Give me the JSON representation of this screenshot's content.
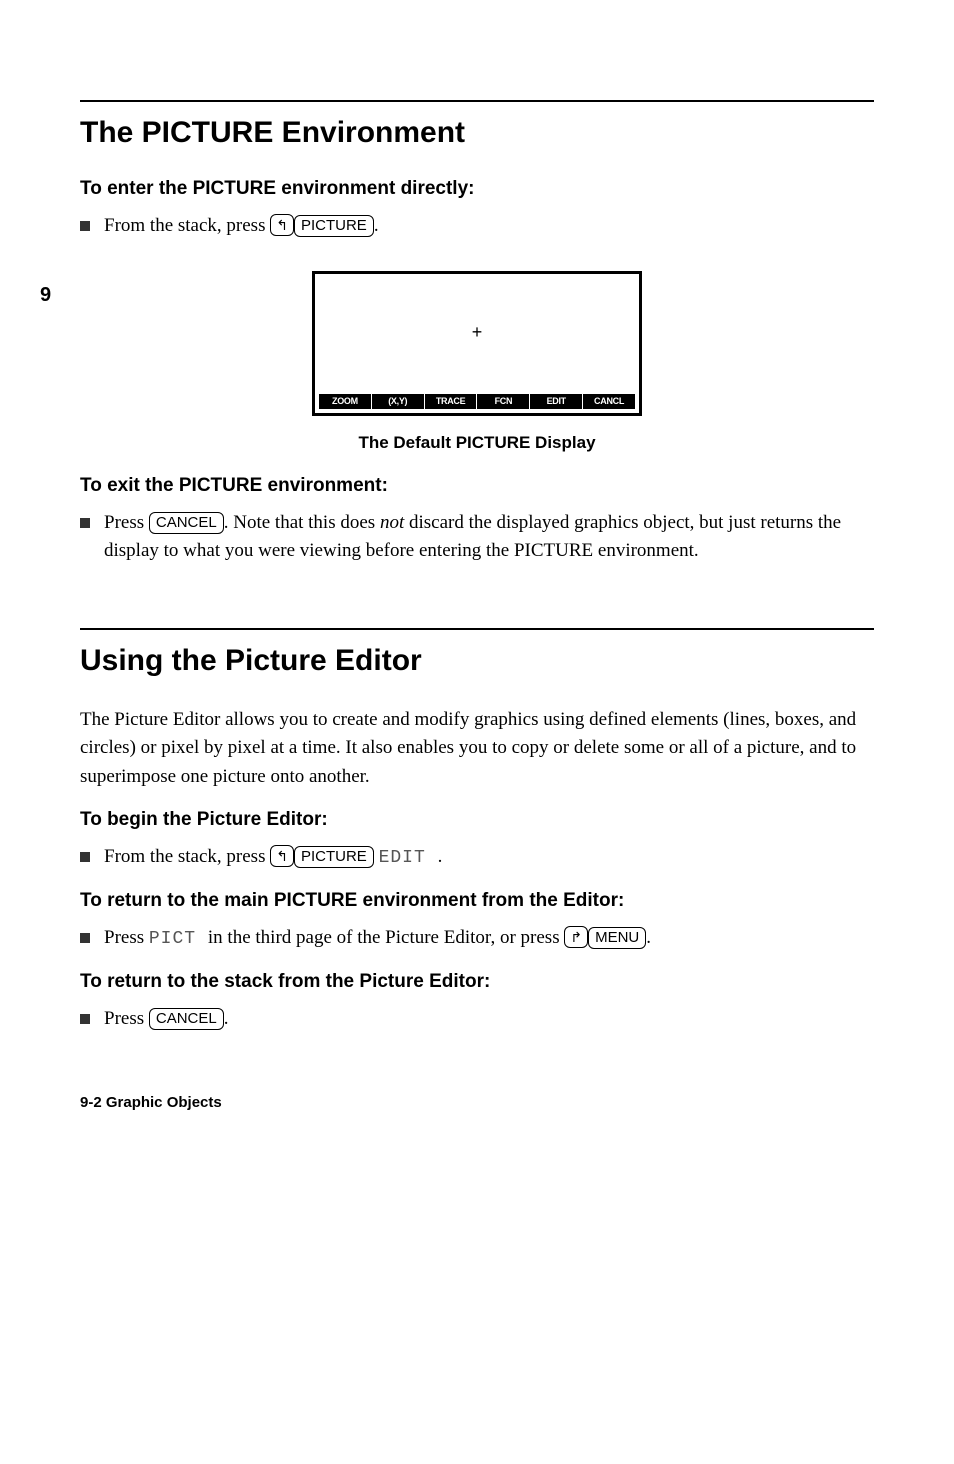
{
  "side_page_num": "9",
  "section1": {
    "title": "The PICTURE Environment",
    "sub_enter": "To enter the PICTURE environment directly:",
    "enter_bullet_pre": "From the stack, press ",
    "shift_left": "↰",
    "key_picture": "PICTURE",
    "period": ".",
    "figure": {
      "plus": "+",
      "menu_items": [
        "ZOOM",
        "(X,Y)",
        "TRACE",
        "FCN",
        "EDIT",
        "CANCL"
      ],
      "caption": "The Default PICTURE Display"
    },
    "sub_exit": "To exit the PICTURE environment:",
    "exit_bullet_pre": "Press ",
    "key_cancel": "CANCEL",
    "exit_bullet_post_a": ".  Note that this does ",
    "exit_bullet_italic": "not",
    "exit_bullet_post_b": " discard the displayed graphics object, but just returns the display to what you were viewing before entering the PICTURE environment."
  },
  "section2": {
    "title": "Using the Picture Editor",
    "intro": "The Picture Editor allows you to create and modify graphics using defined elements (lines, boxes, and circles) or pixel by pixel at a time. It also enables you to copy or delete some or all of a picture, and to superimpose one picture onto another.",
    "sub_begin": "To begin the Picture Editor:",
    "begin_bullet_pre": "From the stack, press ",
    "menu_edit": " EDIT ",
    "sub_return_env": "To return to the main PICTURE environment from the Editor:",
    "return_env_pre": "Press ",
    "menu_pict": " PICT ",
    "return_env_mid": " in the third page of the Picture Editor, or press ",
    "shift_right": "↱",
    "key_menu": "MENU",
    "sub_return_stack": "To return to the stack from the Picture Editor:",
    "return_stack_pre": "Press "
  },
  "footer": "9-2   Graphic Objects"
}
